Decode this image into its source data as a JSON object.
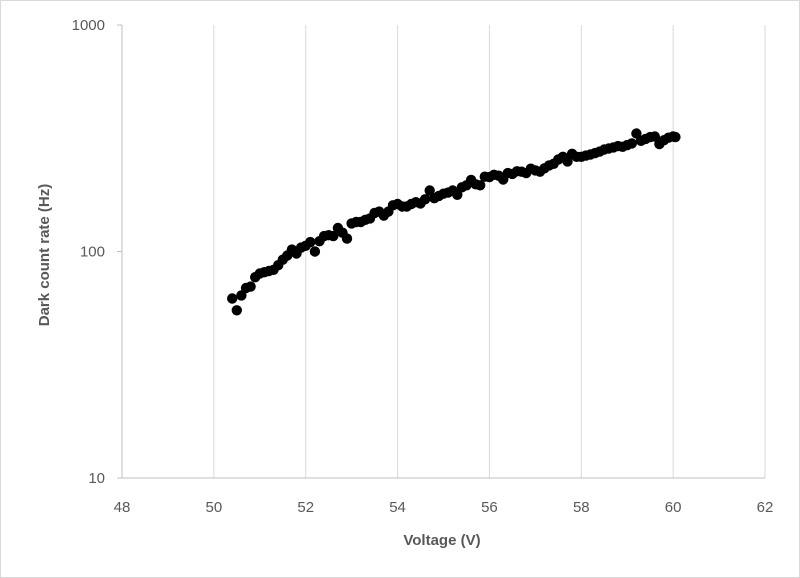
{
  "chart_data": {
    "type": "scatter",
    "title": "",
    "xlabel": "Voltage (V)",
    "ylabel": "Dark count rate (Hz)",
    "xlim": [
      48,
      62
    ],
    "ylim": [
      10,
      1000
    ],
    "y_scale": "log",
    "grid": "vertical gridlines only",
    "legend": "none",
    "marker_color": "#000000",
    "x_ticks": [
      48,
      50,
      52,
      54,
      56,
      58,
      60,
      62
    ],
    "x_tick_labels": [
      "48",
      "50",
      "52",
      "54",
      "56",
      "58",
      "60",
      "62"
    ],
    "y_ticks": [
      10,
      100,
      1000
    ],
    "y_tick_labels": [
      "10",
      "100",
      "1000"
    ],
    "series": [
      {
        "points": [
          [
            50.4,
            62
          ],
          [
            50.5,
            55
          ],
          [
            50.6,
            64
          ],
          [
            50.7,
            69
          ],
          [
            50.8,
            70
          ],
          [
            50.9,
            77
          ],
          [
            51.0,
            80
          ],
          [
            51.1,
            81
          ],
          [
            51.2,
            82
          ],
          [
            51.3,
            83
          ],
          [
            51.4,
            87
          ],
          [
            51.5,
            92
          ],
          [
            51.6,
            96
          ],
          [
            51.7,
            102
          ],
          [
            51.8,
            98
          ],
          [
            51.9,
            104
          ],
          [
            52.0,
            106
          ],
          [
            52.1,
            110
          ],
          [
            52.2,
            100
          ],
          [
            52.3,
            111
          ],
          [
            52.4,
            117
          ],
          [
            52.5,
            118
          ],
          [
            52.6,
            117
          ],
          [
            52.7,
            127
          ],
          [
            52.8,
            121
          ],
          [
            52.9,
            114
          ],
          [
            53.0,
            133
          ],
          [
            53.1,
            135
          ],
          [
            53.2,
            135
          ],
          [
            53.3,
            138
          ],
          [
            53.4,
            140
          ],
          [
            53.5,
            148
          ],
          [
            53.6,
            150
          ],
          [
            53.7,
            144
          ],
          [
            53.8,
            150
          ],
          [
            53.9,
            160
          ],
          [
            54.0,
            162
          ],
          [
            54.1,
            158
          ],
          [
            54.2,
            158
          ],
          [
            54.3,
            162
          ],
          [
            54.4,
            165
          ],
          [
            54.5,
            163
          ],
          [
            54.6,
            170
          ],
          [
            54.7,
            186
          ],
          [
            54.8,
            172
          ],
          [
            54.9,
            176
          ],
          [
            55.0,
            180
          ],
          [
            55.1,
            182
          ],
          [
            55.2,
            186
          ],
          [
            55.3,
            178
          ],
          [
            55.4,
            192
          ],
          [
            55.5,
            196
          ],
          [
            55.6,
            207
          ],
          [
            55.7,
            198
          ],
          [
            55.8,
            196
          ],
          [
            55.9,
            214
          ],
          [
            56.0,
            213
          ],
          [
            56.1,
            218
          ],
          [
            56.2,
            216
          ],
          [
            56.3,
            208
          ],
          [
            56.4,
            222
          ],
          [
            56.5,
            220
          ],
          [
            56.6,
            226
          ],
          [
            56.7,
            225
          ],
          [
            56.8,
            222
          ],
          [
            56.9,
            232
          ],
          [
            57.0,
            228
          ],
          [
            57.1,
            225
          ],
          [
            57.2,
            233
          ],
          [
            57.3,
            240
          ],
          [
            57.4,
            244
          ],
          [
            57.5,
            255
          ],
          [
            57.6,
            262
          ],
          [
            57.7,
            250
          ],
          [
            57.8,
            270
          ],
          [
            57.9,
            262
          ],
          [
            58.0,
            262
          ],
          [
            58.1,
            265
          ],
          [
            58.2,
            268
          ],
          [
            58.3,
            272
          ],
          [
            58.4,
            276
          ],
          [
            58.5,
            282
          ],
          [
            58.6,
            285
          ],
          [
            58.7,
            288
          ],
          [
            58.8,
            292
          ],
          [
            58.9,
            290
          ],
          [
            59.0,
            295
          ],
          [
            59.1,
            300
          ],
          [
            59.2,
            332
          ],
          [
            59.3,
            308
          ],
          [
            59.4,
            314
          ],
          [
            59.5,
            320
          ],
          [
            59.6,
            322
          ],
          [
            59.7,
            298
          ],
          [
            59.8,
            310
          ],
          [
            59.9,
            318
          ],
          [
            60.0,
            322
          ],
          [
            60.05,
            320
          ]
        ]
      }
    ]
  }
}
